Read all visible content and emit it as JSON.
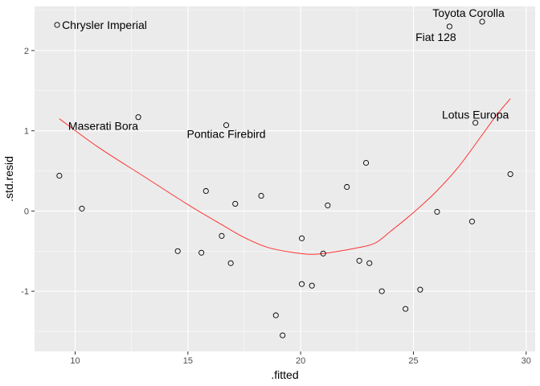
{
  "chart_data": {
    "type": "scatter",
    "xlabel": ".fitted",
    "ylabel": ".std.resid",
    "xlim": [
      8.2,
      30.4
    ],
    "ylim": [
      -1.75,
      2.55
    ],
    "x_ticks": [
      10,
      15,
      20,
      25,
      30
    ],
    "y_ticks": [
      -1,
      0,
      1,
      2
    ],
    "x_tick_labels": [
      "10",
      "15",
      "20",
      "25",
      "30"
    ],
    "y_tick_labels": [
      "-1",
      "0",
      "1",
      "2"
    ],
    "grid": true,
    "points": [
      {
        "x": 9.2,
        "y": 2.32
      },
      {
        "x": 9.3,
        "y": 0.44
      },
      {
        "x": 10.3,
        "y": 0.03
      },
      {
        "x": 12.8,
        "y": 1.17
      },
      {
        "x": 14.55,
        "y": -0.5
      },
      {
        "x": 15.6,
        "y": -0.52
      },
      {
        "x": 15.8,
        "y": 0.25
      },
      {
        "x": 16.5,
        "y": -0.31
      },
      {
        "x": 16.7,
        "y": 1.07
      },
      {
        "x": 16.9,
        "y": -0.65
      },
      {
        "x": 17.1,
        "y": 0.09
      },
      {
        "x": 18.25,
        "y": 0.19
      },
      {
        "x": 18.9,
        "y": -1.3
      },
      {
        "x": 19.2,
        "y": -1.55
      },
      {
        "x": 20.05,
        "y": -0.34
      },
      {
        "x": 20.05,
        "y": -0.91
      },
      {
        "x": 20.5,
        "y": -0.93
      },
      {
        "x": 21.0,
        "y": -0.53
      },
      {
        "x": 21.2,
        "y": 0.07
      },
      {
        "x": 22.05,
        "y": 0.3
      },
      {
        "x": 22.6,
        "y": -0.62
      },
      {
        "x": 22.9,
        "y": 0.6
      },
      {
        "x": 23.05,
        "y": -0.65
      },
      {
        "x": 23.6,
        "y": -1.0
      },
      {
        "x": 24.65,
        "y": -1.22
      },
      {
        "x": 25.3,
        "y": -0.98
      },
      {
        "x": 26.05,
        "y": -0.01
      },
      {
        "x": 26.6,
        "y": 2.3
      },
      {
        "x": 27.6,
        "y": -0.13
      },
      {
        "x": 27.75,
        "y": 1.1
      },
      {
        "x": 28.05,
        "y": 2.36
      },
      {
        "x": 29.3,
        "y": 0.46
      }
    ],
    "labels": [
      {
        "text": "Chrysler Imperial",
        "x": 9.2,
        "y": 2.32
      },
      {
        "text": "Maserati Bora",
        "x": 12.8,
        "y": 1.17
      },
      {
        "text": "Pontiac Firebird",
        "x": 16.7,
        "y": 1.07
      },
      {
        "text": "Fiat 128",
        "x": 26.6,
        "y": 2.3
      },
      {
        "text": "Toyota Corolla",
        "x": 28.05,
        "y": 2.36
      },
      {
        "text": "Lotus Europa",
        "x": 27.75,
        "y": 1.1
      }
    ],
    "smooth": {
      "color": "#ff3333",
      "points": [
        {
          "x": 9.3,
          "y": 1.15
        },
        {
          "x": 11.0,
          "y": 0.8
        },
        {
          "x": 13.0,
          "y": 0.44
        },
        {
          "x": 15.0,
          "y": 0.08
        },
        {
          "x": 16.5,
          "y": -0.17
        },
        {
          "x": 17.5,
          "y": -0.33
        },
        {
          "x": 18.5,
          "y": -0.45
        },
        {
          "x": 19.5,
          "y": -0.51
        },
        {
          "x": 20.5,
          "y": -0.54
        },
        {
          "x": 21.5,
          "y": -0.51
        },
        {
          "x": 22.5,
          "y": -0.46
        },
        {
          "x": 23.3,
          "y": -0.4
        },
        {
          "x": 24.0,
          "y": -0.25
        },
        {
          "x": 25.0,
          "y": -0.02
        },
        {
          "x": 26.0,
          "y": 0.24
        },
        {
          "x": 27.0,
          "y": 0.55
        },
        {
          "x": 28.0,
          "y": 0.93
        },
        {
          "x": 28.7,
          "y": 1.2
        },
        {
          "x": 29.3,
          "y": 1.4
        }
      ]
    },
    "colors": {
      "panel_background": "#ebebeb",
      "grid_major": "#ffffff",
      "point_stroke": "#000000",
      "smooth_line": "#ff3333"
    }
  }
}
